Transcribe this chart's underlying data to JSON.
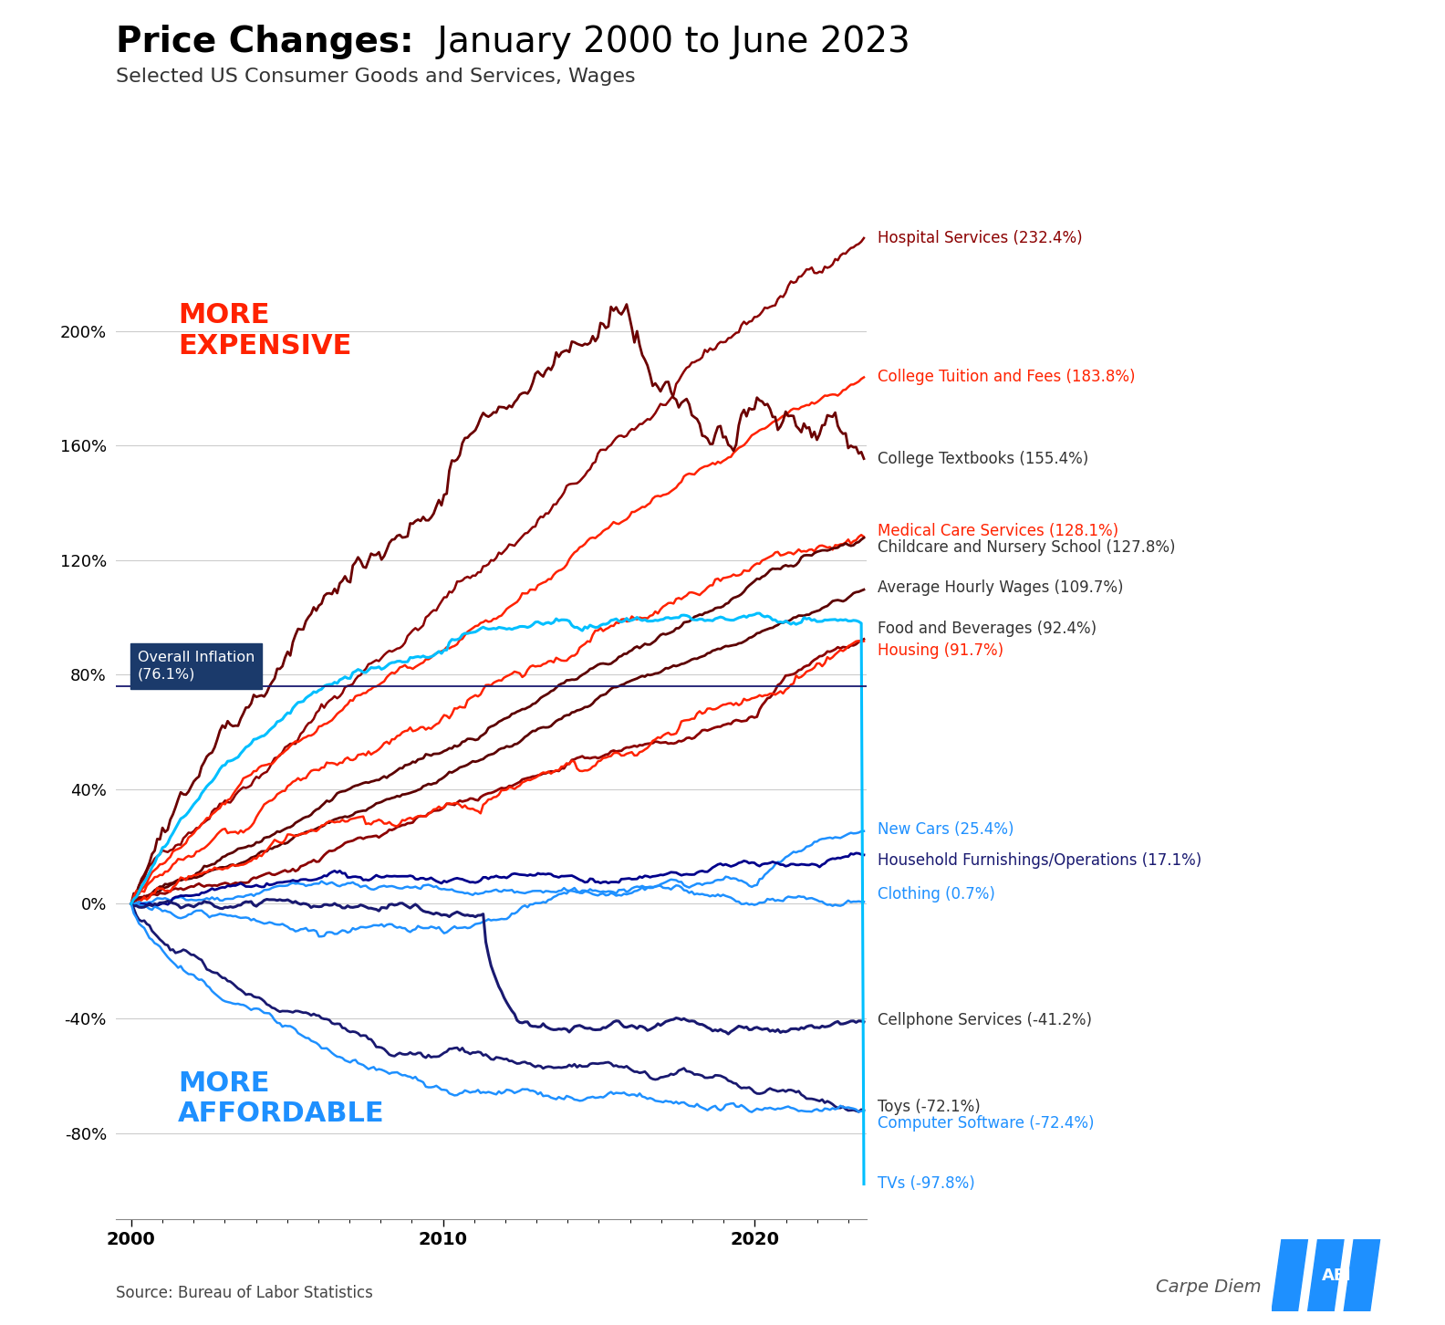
{
  "title_bold": "Price Changes:",
  "title_regular": " January 2000 to June 2023",
  "subtitle": "Selected US Consumer Goods and Services, Wages",
  "source": "Source: Bureau of Labor Statistics",
  "watermark": "Carpe Diem",
  "overall_inflation_label": "Overall Inflation\n(76.1%)",
  "overall_inflation_value": 76.1,
  "more_expensive_label": "MORE\nEXPENSIVE",
  "more_affordable_label": "MORE\nAFFORDABLE",
  "series": [
    {
      "name": "Hospital Services (232.4%)",
      "final": 232.4,
      "color": "#8B0000",
      "lw": 1.8
    },
    {
      "name": "College Tuition and Fees (183.8%)",
      "final": 183.8,
      "color": "#FF2200",
      "lw": 1.8
    },
    {
      "name": "College Textbooks (155.4%)",
      "final": 155.4,
      "color": "#6B0000",
      "lw": 2.0
    },
    {
      "name": "Medical Care Services (128.1%)",
      "final": 128.1,
      "color": "#FF2200",
      "lw": 1.8
    },
    {
      "name": "Childcare and Nursery School (127.8%)",
      "final": 127.8,
      "color": "#5C0000",
      "lw": 2.0
    },
    {
      "name": "Average Hourly Wages (109.7%)",
      "final": 109.7,
      "color": "#5C0000",
      "lw": 2.0
    },
    {
      "name": "Food and Beverages (92.4%)",
      "final": 92.4,
      "color": "#8B0000",
      "lw": 2.0
    },
    {
      "name": "Housing (91.7%)",
      "final": 91.7,
      "color": "#FF2200",
      "lw": 1.8
    },
    {
      "name": "New Cars (25.4%)",
      "final": 25.4,
      "color": "#1E90FF",
      "lw": 1.8
    },
    {
      "name": "Household Furnishings/Operations (17.1%)",
      "final": 17.1,
      "color": "#00008B",
      "lw": 2.0
    },
    {
      "name": "Clothing (0.7%)",
      "final": 0.7,
      "color": "#1E90FF",
      "lw": 1.8
    },
    {
      "name": "Cellphone Services (-41.2%)",
      "final": -41.2,
      "color": "#191970",
      "lw": 2.2
    },
    {
      "name": "Toys (-72.1%)",
      "final": -72.1,
      "color": "#191970",
      "lw": 2.0
    },
    {
      "name": "Computer Software (-72.4%)",
      "final": -72.4,
      "color": "#1E90FF",
      "lw": 1.8
    },
    {
      "name": "TVs (-97.8%)",
      "final": -97.8,
      "color": "#00BFFF",
      "lw": 2.2
    }
  ],
  "label_colors": [
    "#8B0000",
    "#FF2200",
    "#333333",
    "#FF2200",
    "#333333",
    "#333333",
    "#333333",
    "#FF2200",
    "#1E90FF",
    "#191970",
    "#1E90FF",
    "#333333",
    "#333333",
    "#1E90FF",
    "#1E90FF"
  ],
  "ylim": [
    -110,
    260
  ],
  "yticks": [
    -80,
    -40,
    0,
    40,
    80,
    120,
    160,
    200
  ],
  "ytick_labels": [
    "-80%",
    "-40%",
    "0%",
    "40%",
    "80%",
    "120%",
    "160%",
    "200%"
  ],
  "background_color": "#FFFFFF",
  "grid_color": "#CCCCCC",
  "overall_inflation_line_color": "#191970",
  "overall_inflation_box_color": "#1B3A6B"
}
